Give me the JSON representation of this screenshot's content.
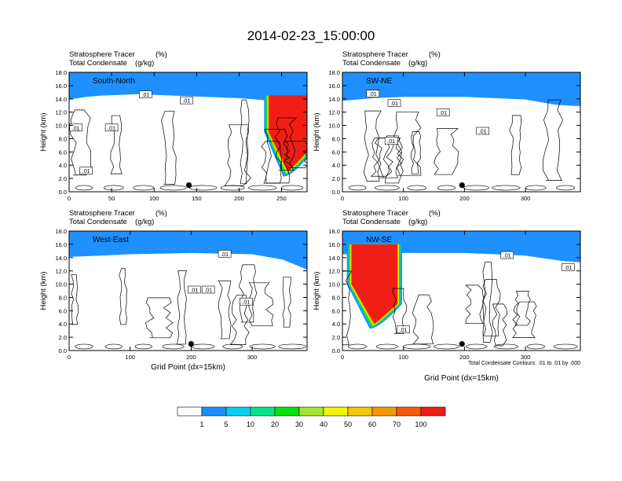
{
  "title": "2014-02-23_15:00:00",
  "left_header": "Stratosphere Tracer",
  "right_header": "(%)",
  "left_header2": "Total Condensate",
  "right_header2": "(g/kg)",
  "ylabel": "Height (km)",
  "xlabel": "Grid Point (dx=15km)",
  "contour_note": "Total Condensate Contours: .01 to .01 by .000",
  "colors": [
    "#ffffff",
    "#1e90ff",
    "#00d2f5",
    "#00e68c",
    "#00e600",
    "#a0e632",
    "#f5f500",
    "#f5c800",
    "#f59b00",
    "#f55a0a",
    "#f01e14"
  ],
  "colorbar": {
    "levels": [
      "1",
      "5",
      "10",
      "20",
      "30",
      "40",
      "50",
      "60",
      "70",
      "100"
    ]
  },
  "chart_data": [
    {
      "type": "heatmap",
      "panel_label": "South-North",
      "xlim": [
        0,
        280
      ],
      "ylim": [
        0,
        18
      ],
      "xticks": [
        0,
        50,
        100,
        150,
        200,
        250
      ],
      "yticks": [
        "0.0",
        "2.0",
        "4.0",
        "6.0",
        "8.0",
        "10.0",
        "12.0",
        "14.0",
        "16.0",
        "18.0"
      ],
      "tropopause": [
        [
          0,
          15.2
        ],
        [
          20,
          15.6
        ],
        [
          40,
          15.8
        ],
        [
          80,
          16.0
        ],
        [
          120,
          15.8
        ],
        [
          160,
          15.6
        ],
        [
          200,
          15.4
        ],
        [
          240,
          15.0
        ],
        [
          280,
          15.0
        ]
      ],
      "intrusions": [
        {
          "x": [
            235,
            280
          ],
          "top": 14.5,
          "bottom": 3.0
        }
      ],
      "contour_labels": [
        {
          "x": 8,
          "y": 9.5,
          "text": ".01"
        },
        {
          "x": 50,
          "y": 9.5,
          "text": ".01"
        },
        {
          "x": 20,
          "y": 3.0,
          "text": ".01"
        },
        {
          "x": 90,
          "y": 14.5,
          "text": ".01"
        },
        {
          "x": 138,
          "y": 13.6,
          "text": ".01"
        }
      ],
      "marker": {
        "x": 141,
        "y": 1.0
      }
    },
    {
      "type": "heatmap",
      "panel_label": "SW-NE",
      "xlim": [
        0,
        390
      ],
      "ylim": [
        0,
        18
      ],
      "xticks": [
        0,
        100,
        200,
        300
      ],
      "yticks": [
        "0.0",
        "2.0",
        "4.0",
        "6.0",
        "8.0",
        "10.0",
        "12.0",
        "14.0",
        "16.0",
        "18.0"
      ],
      "tropopause": [
        [
          0,
          15.0
        ],
        [
          50,
          15.4
        ],
        [
          100,
          15.6
        ],
        [
          200,
          15.6
        ],
        [
          300,
          15.2
        ],
        [
          350,
          14.4
        ],
        [
          390,
          14.2
        ]
      ],
      "intrusions": [],
      "contour_labels": [
        {
          "x": 50,
          "y": 14.6,
          "text": ".01"
        },
        {
          "x": 85,
          "y": 13.2,
          "text": ".01"
        },
        {
          "x": 80,
          "y": 7.5,
          "text": ".01"
        },
        {
          "x": 165,
          "y": 11.8,
          "text": ".01"
        },
        {
          "x": 230,
          "y": 9.0,
          "text": ".01"
        }
      ],
      "marker": {
        "x": 196,
        "y": 1.0
      }
    },
    {
      "type": "heatmap",
      "panel_label": "West-East",
      "xlim": [
        0,
        390
      ],
      "ylim": [
        0,
        18
      ],
      "xticks": [
        0,
        100,
        200,
        300
      ],
      "yticks": [
        "0.0",
        "2.0",
        "4.0",
        "6.0",
        "8.0",
        "10.0",
        "12.0",
        "14.0",
        "16.0",
        "18.0"
      ],
      "tropopause": [
        [
          0,
          15.4
        ],
        [
          100,
          15.8
        ],
        [
          200,
          16.0
        ],
        [
          300,
          15.8
        ],
        [
          350,
          15.0
        ],
        [
          390,
          13.5
        ]
      ],
      "intrusions": [],
      "contour_labels": [
        {
          "x": 255,
          "y": 14.4,
          "text": ".01"
        },
        {
          "x": 205,
          "y": 9.0,
          "text": ".01"
        },
        {
          "x": 228,
          "y": 9.0,
          "text": ".01"
        },
        {
          "x": 290,
          "y": 7.2,
          "text": ".01"
        }
      ],
      "marker": {
        "x": 200,
        "y": 1.0
      }
    },
    {
      "type": "heatmap",
      "panel_label": "NW-SE",
      "xlim": [
        0,
        390
      ],
      "ylim": [
        0,
        18
      ],
      "xticks": [
        0,
        100,
        200,
        300
      ],
      "yticks": [
        "0.0",
        "2.0",
        "4.0",
        "6.0",
        "8.0",
        "10.0",
        "12.0",
        "14.0",
        "16.0",
        "18.0"
      ],
      "tropopause": [
        [
          0,
          15.8
        ],
        [
          100,
          16.0
        ],
        [
          200,
          16.0
        ],
        [
          300,
          15.6
        ],
        [
          360,
          14.8
        ],
        [
          390,
          14.6
        ]
      ],
      "intrusions": [
        {
          "x": [
            15,
            90
          ],
          "top": 16.0,
          "bottom": 4.0
        }
      ],
      "contour_labels": [
        {
          "x": 270,
          "y": 14.2,
          "text": ".01"
        },
        {
          "x": 370,
          "y": 12.4,
          "text": ".01"
        },
        {
          "x": 100,
          "y": 3.0,
          "text": ".01"
        }
      ],
      "marker": {
        "x": 196,
        "y": 1.0
      }
    }
  ]
}
